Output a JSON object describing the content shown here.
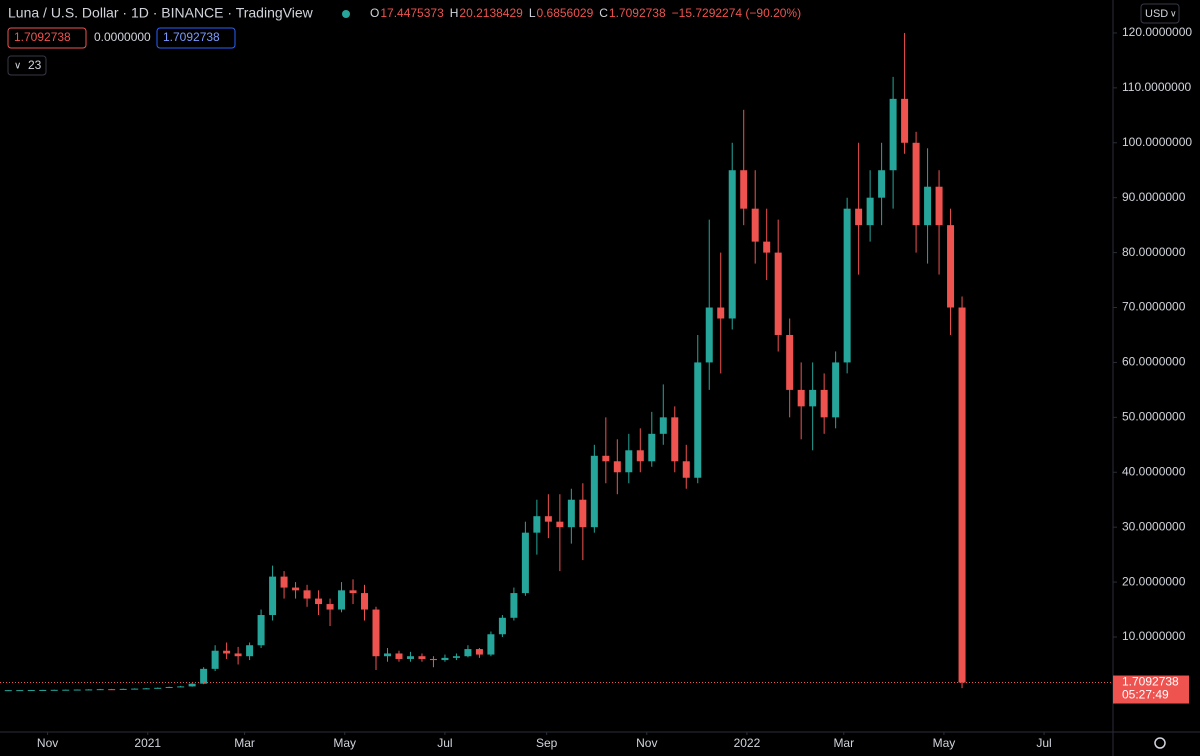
{
  "chart_data": {
    "type": "candlestick",
    "title": "Luna / U.S. Dollar · 1D · BINANCE · TradingView",
    "header": {
      "o_label": "O",
      "open": 17.4475373,
      "h_label": "H",
      "high": 20.2138429,
      "l_label": "L",
      "low": 0.6856029,
      "c_label": "C",
      "close": 1.7092738,
      "change": "−15.7292274 (−90.20%)"
    },
    "boxes": [
      "1.7092738",
      "0.0000000",
      "1.7092738"
    ],
    "indicator_count": "23",
    "currency": "USD",
    "countdown": "05:27:49",
    "up_color": "#26a69a",
    "down_color": "#ef5350",
    "x": [
      "2020-10-05",
      "2020-10-12",
      "2020-10-19",
      "2020-10-26",
      "2020-11-02",
      "2020-11-09",
      "2020-11-16",
      "2020-11-23",
      "2020-11-30",
      "2020-12-07",
      "2020-12-14",
      "2020-12-21",
      "2020-12-28",
      "2021-01-04",
      "2021-01-11",
      "2021-01-18",
      "2021-01-25",
      "2021-02-01",
      "2021-02-08",
      "2021-02-15",
      "2021-02-22",
      "2021-03-01",
      "2021-03-08",
      "2021-03-15",
      "2021-03-22",
      "2021-03-29",
      "2021-04-05",
      "2021-04-12",
      "2021-04-19",
      "2021-04-26",
      "2021-05-03",
      "2021-05-10",
      "2021-05-17",
      "2021-05-24",
      "2021-05-31",
      "2021-06-07",
      "2021-06-14",
      "2021-06-21",
      "2021-06-28",
      "2021-07-05",
      "2021-07-12",
      "2021-07-19",
      "2021-07-26",
      "2021-08-02",
      "2021-08-09",
      "2021-08-16",
      "2021-08-23",
      "2021-08-30",
      "2021-09-06",
      "2021-09-13",
      "2021-09-20",
      "2021-09-27",
      "2021-10-04",
      "2021-10-11",
      "2021-10-18",
      "2021-10-25",
      "2021-11-01",
      "2021-11-08",
      "2021-11-15",
      "2021-11-22",
      "2021-11-29",
      "2021-12-06",
      "2021-12-13",
      "2021-12-20",
      "2021-12-27",
      "2022-01-03",
      "2022-01-10",
      "2022-01-17",
      "2022-01-24",
      "2022-01-31",
      "2022-02-07",
      "2022-02-14",
      "2022-02-21",
      "2022-02-28",
      "2022-03-07",
      "2022-03-14",
      "2022-03-21",
      "2022-03-28",
      "2022-04-04",
      "2022-04-11",
      "2022-04-18",
      "2022-04-25",
      "2022-05-02",
      "2022-05-09"
    ],
    "open": [
      0.3,
      0.32,
      0.33,
      0.34,
      0.36,
      0.38,
      0.4,
      0.43,
      0.45,
      0.5,
      0.48,
      0.55,
      0.6,
      0.65,
      0.75,
      0.9,
      1.0,
      1.5,
      4.2,
      7.5,
      7,
      6.5,
      8.5,
      14,
      21,
      19,
      18.5,
      17,
      16,
      15,
      18.5,
      18,
      15,
      6.5,
      7,
      6,
      6.5,
      6,
      5.8,
      6.2,
      6.5,
      7.8,
      6.8,
      10.5,
      13.5,
      18,
      29,
      32,
      31,
      30,
      35,
      30,
      43,
      42,
      40,
      44,
      42,
      47,
      50,
      42,
      39,
      60,
      70,
      68,
      95,
      88,
      82,
      80,
      65,
      55,
      52,
      55,
      50,
      60,
      88,
      85,
      90,
      95,
      108,
      100,
      85,
      92,
      85,
      70
    ],
    "high": [
      0.35,
      0.35,
      0.36,
      0.38,
      0.4,
      0.42,
      0.45,
      0.5,
      0.55,
      0.55,
      0.6,
      0.65,
      0.7,
      0.8,
      0.95,
      1.1,
      1.6,
      4.5,
      8.5,
      9,
      8.2,
      9,
      15,
      23,
      22,
      20,
      19.5,
      18.5,
      17,
      20,
      20.5,
      19.5,
      15.5,
      8,
      7.5,
      7.3,
      7,
      6.5,
      6.8,
      7,
      8.5,
      8,
      11,
      14,
      19,
      31,
      35,
      36,
      36,
      37,
      38,
      45,
      50,
      46,
      47,
      48,
      51,
      56,
      52,
      45,
      65,
      86,
      80,
      100,
      106,
      95,
      88,
      86,
      68,
      60,
      60,
      58,
      62,
      90,
      100,
      95,
      100,
      112,
      120,
      102,
      99,
      95,
      88,
      72
    ],
    "low": [
      0.28,
      0.3,
      0.3,
      0.32,
      0.33,
      0.35,
      0.38,
      0.38,
      0.42,
      0.45,
      0.46,
      0.5,
      0.55,
      0.6,
      0.7,
      0.85,
      0.95,
      1.4,
      3.8,
      6,
      5,
      5.8,
      8,
      13,
      17,
      17,
      15.5,
      14,
      12,
      14.5,
      16,
      13,
      4,
      5.5,
      5.5,
      5.5,
      5.5,
      4.5,
      5.5,
      5.8,
      6.3,
      6.2,
      6.5,
      10,
      13,
      17.5,
      25,
      28,
      22,
      27,
      24,
      29,
      38,
      36,
      38,
      40,
      41,
      45,
      40,
      37,
      38,
      55,
      58,
      66,
      85,
      78,
      75,
      62,
      50,
      46,
      44,
      47,
      48,
      58,
      76,
      82,
      85,
      88,
      98,
      80,
      78,
      76,
      65,
      0.6856029
    ],
    "close": [
      0.32,
      0.33,
      0.34,
      0.36,
      0.38,
      0.4,
      0.43,
      0.45,
      0.5,
      0.48,
      0.55,
      0.6,
      0.65,
      0.75,
      0.9,
      1.0,
      1.5,
      4.2,
      7.5,
      7,
      6.5,
      8.5,
      14,
      21,
      19,
      18.5,
      17,
      16,
      15,
      18.5,
      18,
      15,
      6.5,
      7,
      6,
      6.5,
      6,
      5.8,
      6.2,
      6.5,
      7.8,
      6.8,
      10.5,
      13.5,
      18,
      29,
      32,
      31,
      30,
      35,
      30,
      43,
      42,
      40,
      44,
      42,
      47,
      50,
      42,
      39,
      60,
      70,
      68,
      95,
      88,
      82,
      80,
      65,
      55,
      52,
      55,
      50,
      60,
      88,
      85,
      90,
      95,
      108,
      100,
      85,
      92,
      85,
      70,
      1.7092738
    ],
    "xlim": [
      "2020-10-03",
      "2022-08-12"
    ],
    "xticks": [
      {
        "value": "2020-11-01",
        "label": "Nov"
      },
      {
        "value": "2021-01-01",
        "label": "2021"
      },
      {
        "value": "2021-03-01",
        "label": "Mar"
      },
      {
        "value": "2021-05-01",
        "label": "May"
      },
      {
        "value": "2021-07-01",
        "label": "Jul"
      },
      {
        "value": "2021-09-01",
        "label": "Sep"
      },
      {
        "value": "2021-11-01",
        "label": "Nov"
      },
      {
        "value": "2022-01-01",
        "label": "2022"
      },
      {
        "value": "2022-03-01",
        "label": "Mar"
      },
      {
        "value": "2022-05-01",
        "label": "May"
      },
      {
        "value": "2022-07-01",
        "label": "Jul"
      }
    ],
    "ylim": [
      -7.3,
      126
    ],
    "yticks": [
      {
        "value": 10,
        "label": "10.0000000"
      },
      {
        "value": 20,
        "label": "20.0000000"
      },
      {
        "value": 30,
        "label": "30.0000000"
      },
      {
        "value": 40,
        "label": "40.0000000"
      },
      {
        "value": 50,
        "label": "50.0000000"
      },
      {
        "value": 60,
        "label": "60.0000000"
      },
      {
        "value": 70,
        "label": "70.0000000"
      },
      {
        "value": 80,
        "label": "80.0000000"
      },
      {
        "value": 90,
        "label": "90.0000000"
      },
      {
        "value": 100,
        "label": "100.0000000"
      },
      {
        "value": 110,
        "label": "110.0000000"
      },
      {
        "value": 120,
        "label": "120.0000000"
      }
    ]
  }
}
